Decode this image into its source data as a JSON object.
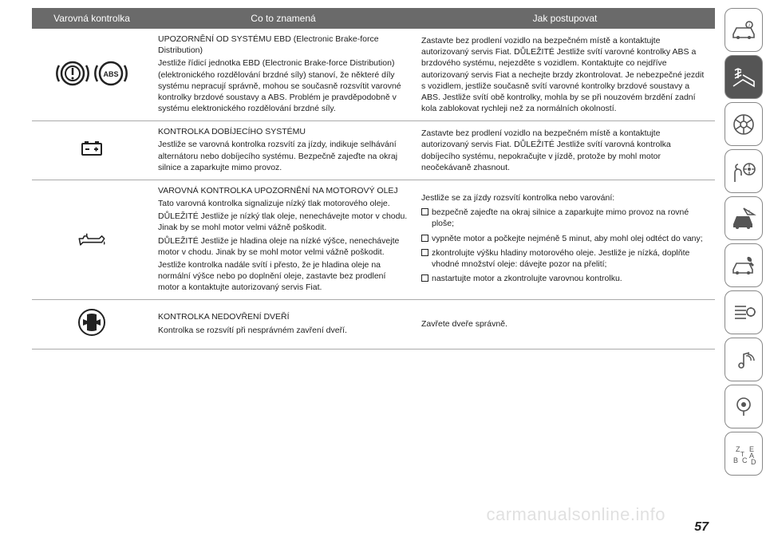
{
  "page_number": "57",
  "watermark": "carmanualsonline.info",
  "colors": {
    "header_bg": "#6a6a6a",
    "header_fg": "#ffffff",
    "row_border": "#aaaaaa",
    "text": "#222222",
    "sidebar_active_bg": "#555555",
    "sidebar_border": "#888888"
  },
  "headers": {
    "col1": "Varovná kontrolka",
    "col2": "Co to znamená",
    "col3": "Jak postupovat"
  },
  "rows": {
    "ebd": {
      "meaning": "UPOZORNĚNÍ OD SYSTÉMU EBD (Electronic Brake-force Distribution)\nJestliže řídicí jednotka EBD (Electronic Brake-force Distribution) (elektronického rozdělování brzdné síly) stanoví, že některé díly systému nepracují správně, mohou se současně rozsvítit varovné kontrolky brzdové soustavy a ABS. Problém je pravděpodobně v systému elektronického rozdělování brzdné síly.",
      "action": "Zastavte bez prodlení vozidlo na bezpečném místě a kontaktujte autorizovaný servis Fiat. DŮLEŽITÉ Jestliže svítí varovné kontrolky ABS a brzdového systému, nejezděte s vozidlem. Kontaktujte co nejdříve autorizovaný servis Fiat a nechejte brzdy zkontrolovat. Je nebezpečné jezdit s vozidlem, jestliže současně svítí varovné kontrolky brzdové soustavy a ABS. Jestliže svítí obě kontrolky, mohla by se při nouzovém brzdění zadní kola zablokovat rychleji než za normálních okolností.",
      "abs_label": "ABS"
    },
    "charge": {
      "meaning": "KONTROLKA DOBÍJECÍHO SYSTÉMU\nJestliže se varovná kontrolka rozsvítí za jízdy, indikuje selhávání alternátoru nebo dobíjecího systému. Bezpečně zajeďte na okraj silnice a zaparkujte mimo provoz.",
      "action": "Zastavte bez prodlení vozidlo na bezpečném místě a kontaktujte autorizovaný servis Fiat. DŮLEŽITÉ Jestliže svítí varovná kontrolka dobíjecího systému, nepokračujte v jízdě, protože by mohl motor neočekávaně zhasnout."
    },
    "oil": {
      "meaning": "VAROVNÁ KONTROLKA UPOZORNĚNÍ NA MOTOROVÝ OLEJ\nTato varovná kontrolka signalizuje nízký tlak motorového oleje.\nDŮLEŽITÉ Jestliže je nízký tlak oleje, nenechávejte motor v chodu. Jinak by se mohl motor velmi vážně poškodit.\nDŮLEŽITÉ Jestliže je hladina oleje na nízké výšce, nenechávejte motor v chodu. Jinak by se mohl motor velmi vážně poškodit.\nJestliže kontrolka nadále svítí i přesto, že je hladina oleje na normální výšce nebo po doplnění oleje, zastavte bez prodlení motor a kontaktujte autorizovaný servis Fiat.",
      "action_intro": "Jestliže se za jízdy rozsvítí kontrolka nebo varování:",
      "action_items": [
        "bezpečně zajeďte na okraj silnice a zaparkujte mimo provoz na rovné ploše;",
        "vypněte motor a počkejte nejméně 5 minut, aby mohl olej odtéct do vany;",
        "zkontrolujte výšku hladiny motorového oleje. Jestliže je nízká, doplňte vhodné množství oleje: dávejte pozor na přelití;",
        "nastartujte motor a zkontrolujte varovnou kontrolku."
      ]
    },
    "door": {
      "meaning": "KONTROLKA NEDOVŘENÍ DVEŘÍ\nKontrolka se rozsvítí při nesprávném zavření dveří.",
      "action": "Zavřete dveře správně."
    }
  }
}
